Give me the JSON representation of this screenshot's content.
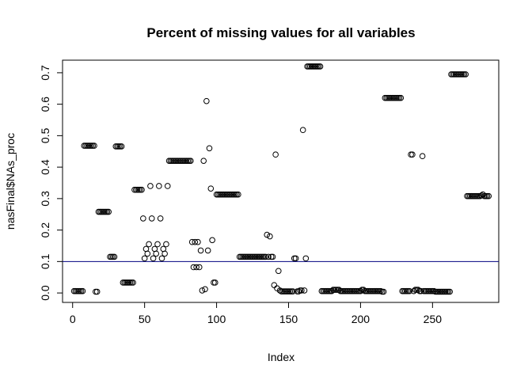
{
  "chart_data": {
    "type": "scatter",
    "title": "Percent of missing values for all variables",
    "xlabel": "Index",
    "ylabel": "nasFinal$NAs_proc",
    "xlim": [
      -7,
      296
    ],
    "ylim": [
      -0.03,
      0.74
    ],
    "x_ticks": [
      0,
      50,
      100,
      150,
      200,
      250
    ],
    "x_tick_labels": [
      "0",
      "50",
      "100",
      "150",
      "200",
      "250"
    ],
    "y_ticks": [
      0.0,
      0.1,
      0.2,
      0.3,
      0.4,
      0.5,
      0.6,
      0.7
    ],
    "y_tick_labels": [
      "0.0",
      "0.1",
      "0.2",
      "0.3",
      "0.4",
      "0.5",
      "0.6",
      "0.7"
    ],
    "hline": 0.1,
    "grid": false,
    "marker": "open-circle",
    "points": [
      [
        1,
        0.006
      ],
      [
        2,
        0.006
      ],
      [
        3,
        0.006
      ],
      [
        4,
        0.006
      ],
      [
        5,
        0.006
      ],
      [
        6,
        0.006
      ],
      [
        7,
        0.006
      ],
      [
        8,
        0.468
      ],
      [
        9,
        0.468
      ],
      [
        10,
        0.468
      ],
      [
        11,
        0.468
      ],
      [
        12,
        0.468
      ],
      [
        13,
        0.468
      ],
      [
        14,
        0.468
      ],
      [
        15,
        0.468
      ],
      [
        16,
        0.004
      ],
      [
        17,
        0.004
      ],
      [
        18,
        0.258
      ],
      [
        19,
        0.258
      ],
      [
        20,
        0.258
      ],
      [
        21,
        0.258
      ],
      [
        22,
        0.258
      ],
      [
        23,
        0.258
      ],
      [
        24,
        0.258
      ],
      [
        25,
        0.258
      ],
      [
        26,
        0.115
      ],
      [
        27,
        0.115
      ],
      [
        28,
        0.115
      ],
      [
        29,
        0.115
      ],
      [
        30,
        0.466
      ],
      [
        31,
        0.466
      ],
      [
        32,
        0.466
      ],
      [
        33,
        0.466
      ],
      [
        34,
        0.466
      ],
      [
        35,
        0.033
      ],
      [
        36,
        0.033
      ],
      [
        37,
        0.033
      ],
      [
        38,
        0.033
      ],
      [
        39,
        0.033
      ],
      [
        40,
        0.033
      ],
      [
        41,
        0.033
      ],
      [
        42,
        0.033
      ],
      [
        43,
        0.328
      ],
      [
        44,
        0.328
      ],
      [
        45,
        0.328
      ],
      [
        46,
        0.328
      ],
      [
        47,
        0.328
      ],
      [
        48,
        0.328
      ],
      [
        49,
        0.237
      ],
      [
        50,
        0.11
      ],
      [
        51,
        0.14
      ],
      [
        52,
        0.125
      ],
      [
        53,
        0.155
      ],
      [
        54,
        0.34
      ],
      [
        55,
        0.237
      ],
      [
        56,
        0.11
      ],
      [
        57,
        0.14
      ],
      [
        58,
        0.125
      ],
      [
        59,
        0.155
      ],
      [
        60,
        0.34
      ],
      [
        61,
        0.237
      ],
      [
        62,
        0.11
      ],
      [
        63,
        0.14
      ],
      [
        64,
        0.125
      ],
      [
        65,
        0.155
      ],
      [
        66,
        0.34
      ],
      [
        67,
        0.42
      ],
      [
        68,
        0.42
      ],
      [
        69,
        0.42
      ],
      [
        70,
        0.42
      ],
      [
        71,
        0.42
      ],
      [
        72,
        0.42
      ],
      [
        73,
        0.42
      ],
      [
        74,
        0.42
      ],
      [
        75,
        0.42
      ],
      [
        76,
        0.42
      ],
      [
        77,
        0.42
      ],
      [
        78,
        0.42
      ],
      [
        79,
        0.42
      ],
      [
        80,
        0.42
      ],
      [
        81,
        0.42
      ],
      [
        82,
        0.42
      ],
      [
        83,
        0.162
      ],
      [
        84,
        0.082
      ],
      [
        85,
        0.162
      ],
      [
        86,
        0.082
      ],
      [
        87,
        0.162
      ],
      [
        88,
        0.082
      ],
      [
        89,
        0.135
      ],
      [
        90,
        0.008
      ],
      [
        91,
        0.42
      ],
      [
        92,
        0.012
      ],
      [
        93,
        0.61
      ],
      [
        94,
        0.135
      ],
      [
        95,
        0.46
      ],
      [
        96,
        0.332
      ],
      [
        97,
        0.168
      ],
      [
        98,
        0.033
      ],
      [
        99,
        0.033
      ],
      [
        100,
        0.313
      ],
      [
        101,
        0.313
      ],
      [
        102,
        0.313
      ],
      [
        103,
        0.313
      ],
      [
        104,
        0.313
      ],
      [
        105,
        0.313
      ],
      [
        106,
        0.313
      ],
      [
        107,
        0.313
      ],
      [
        108,
        0.313
      ],
      [
        109,
        0.313
      ],
      [
        110,
        0.313
      ],
      [
        111,
        0.313
      ],
      [
        112,
        0.313
      ],
      [
        113,
        0.313
      ],
      [
        114,
        0.313
      ],
      [
        115,
        0.313
      ],
      [
        116,
        0.115
      ],
      [
        117,
        0.115
      ],
      [
        118,
        0.115
      ],
      [
        119,
        0.115
      ],
      [
        120,
        0.115
      ],
      [
        121,
        0.115
      ],
      [
        122,
        0.115
      ],
      [
        123,
        0.115
      ],
      [
        124,
        0.115
      ],
      [
        125,
        0.115
      ],
      [
        126,
        0.115
      ],
      [
        127,
        0.115
      ],
      [
        128,
        0.115
      ],
      [
        129,
        0.115
      ],
      [
        130,
        0.115
      ],
      [
        131,
        0.115
      ],
      [
        132,
        0.115
      ],
      [
        133,
        0.115
      ],
      [
        134,
        0.115
      ],
      [
        135,
        0.185
      ],
      [
        136,
        0.115
      ],
      [
        137,
        0.18
      ],
      [
        138,
        0.115
      ],
      [
        139,
        0.115
      ],
      [
        140,
        0.025
      ],
      [
        141,
        0.44
      ],
      [
        142,
        0.015
      ],
      [
        143,
        0.07
      ],
      [
        144,
        0.008
      ],
      [
        145,
        0.005
      ],
      [
        146,
        0.005
      ],
      [
        147,
        0.005
      ],
      [
        148,
        0.005
      ],
      [
        149,
        0.005
      ],
      [
        150,
        0.005
      ],
      [
        151,
        0.005
      ],
      [
        152,
        0.005
      ],
      [
        153,
        0.005
      ],
      [
        154,
        0.11
      ],
      [
        155,
        0.11
      ],
      [
        156,
        0.005
      ],
      [
        157,
        0.005
      ],
      [
        158,
        0.008
      ],
      [
        159,
        0.008
      ],
      [
        160,
        0.518
      ],
      [
        161,
        0.008
      ],
      [
        162,
        0.11
      ],
      [
        163,
        0.72
      ],
      [
        164,
        0.72
      ],
      [
        165,
        0.72
      ],
      [
        166,
        0.72
      ],
      [
        167,
        0.72
      ],
      [
        168,
        0.72
      ],
      [
        169,
        0.72
      ],
      [
        170,
        0.72
      ],
      [
        171,
        0.72
      ],
      [
        172,
        0.72
      ],
      [
        173,
        0.006
      ],
      [
        174,
        0.006
      ],
      [
        175,
        0.006
      ],
      [
        176,
        0.006
      ],
      [
        177,
        0.006
      ],
      [
        178,
        0.006
      ],
      [
        179,
        0.006
      ],
      [
        180,
        0.006
      ],
      [
        181,
        0.01
      ],
      [
        182,
        0.01
      ],
      [
        183,
        0.01
      ],
      [
        184,
        0.01
      ],
      [
        185,
        0.01
      ],
      [
        186,
        0.006
      ],
      [
        187,
        0.006
      ],
      [
        188,
        0.006
      ],
      [
        189,
        0.006
      ],
      [
        190,
        0.006
      ],
      [
        191,
        0.006
      ],
      [
        192,
        0.006
      ],
      [
        193,
        0.006
      ],
      [
        194,
        0.006
      ],
      [
        195,
        0.006
      ],
      [
        196,
        0.006
      ],
      [
        197,
        0.006
      ],
      [
        198,
        0.006
      ],
      [
        199,
        0.006
      ],
      [
        200,
        0.006
      ],
      [
        201,
        0.01
      ],
      [
        202,
        0.01
      ],
      [
        203,
        0.006
      ],
      [
        204,
        0.006
      ],
      [
        205,
        0.006
      ],
      [
        206,
        0.006
      ],
      [
        207,
        0.006
      ],
      [
        208,
        0.006
      ],
      [
        209,
        0.006
      ],
      [
        210,
        0.006
      ],
      [
        211,
        0.006
      ],
      [
        212,
        0.006
      ],
      [
        213,
        0.006
      ],
      [
        214,
        0.006
      ],
      [
        215,
        0.004
      ],
      [
        216,
        0.004
      ],
      [
        217,
        0.62
      ],
      [
        218,
        0.62
      ],
      [
        219,
        0.62
      ],
      [
        220,
        0.62
      ],
      [
        221,
        0.62
      ],
      [
        222,
        0.62
      ],
      [
        223,
        0.62
      ],
      [
        224,
        0.62
      ],
      [
        225,
        0.62
      ],
      [
        226,
        0.62
      ],
      [
        227,
        0.62
      ],
      [
        228,
        0.62
      ],
      [
        229,
        0.006
      ],
      [
        230,
        0.006
      ],
      [
        231,
        0.006
      ],
      [
        232,
        0.006
      ],
      [
        233,
        0.006
      ],
      [
        234,
        0.006
      ],
      [
        235,
        0.44
      ],
      [
        236,
        0.44
      ],
      [
        237,
        0.006
      ],
      [
        238,
        0.01
      ],
      [
        239,
        0.01
      ],
      [
        240,
        0.01
      ],
      [
        241,
        0.006
      ],
      [
        242,
        0.006
      ],
      [
        243,
        0.435
      ],
      [
        244,
        0.006
      ],
      [
        245,
        0.006
      ],
      [
        246,
        0.006
      ],
      [
        247,
        0.006
      ],
      [
        248,
        0.006
      ],
      [
        249,
        0.006
      ],
      [
        250,
        0.006
      ],
      [
        251,
        0.006
      ],
      [
        252,
        0.004
      ],
      [
        253,
        0.004
      ],
      [
        254,
        0.004
      ],
      [
        255,
        0.004
      ],
      [
        256,
        0.004
      ],
      [
        257,
        0.004
      ],
      [
        258,
        0.004
      ],
      [
        259,
        0.004
      ],
      [
        260,
        0.004
      ],
      [
        261,
        0.004
      ],
      [
        262,
        0.004
      ],
      [
        263,
        0.695
      ],
      [
        264,
        0.695
      ],
      [
        265,
        0.695
      ],
      [
        266,
        0.695
      ],
      [
        267,
        0.695
      ],
      [
        268,
        0.695
      ],
      [
        269,
        0.695
      ],
      [
        270,
        0.695
      ],
      [
        271,
        0.695
      ],
      [
        272,
        0.695
      ],
      [
        273,
        0.695
      ],
      [
        274,
        0.308
      ],
      [
        275,
        0.308
      ],
      [
        276,
        0.308
      ],
      [
        277,
        0.308
      ],
      [
        278,
        0.308
      ],
      [
        279,
        0.308
      ],
      [
        280,
        0.308
      ],
      [
        281,
        0.308
      ],
      [
        282,
        0.308
      ],
      [
        283,
        0.308
      ],
      [
        284,
        0.31
      ],
      [
        285,
        0.313
      ],
      [
        286,
        0.308
      ],
      [
        287,
        0.308
      ],
      [
        288,
        0.308
      ],
      [
        289,
        0.308
      ]
    ]
  }
}
